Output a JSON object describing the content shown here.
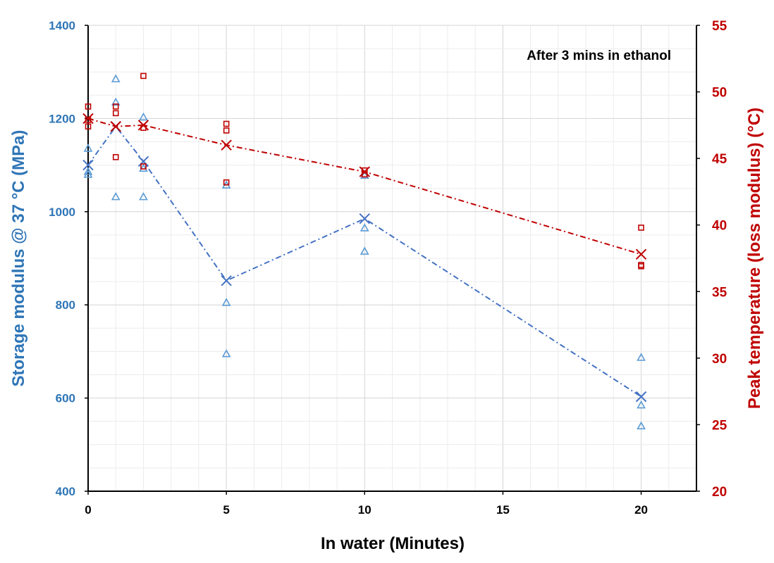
{
  "chart_data": {
    "type": "scatter",
    "annotation": "After 3 mins in ethanol",
    "xlabel": "In water (Minutes)",
    "ylabel_left": "Storage modulus @ 37 °C (MPa)",
    "ylabel_right": "Peak temperature (loss modulus) (°C)",
    "xlim": [
      0,
      22
    ],
    "ylim_left": [
      400,
      1400
    ],
    "ylim_right": [
      20,
      55
    ],
    "x_ticks": [
      0,
      5,
      10,
      15,
      20
    ],
    "y_ticks_left": [
      400,
      600,
      800,
      1000,
      1200,
      1400
    ],
    "y_ticks_right": [
      20,
      25,
      30,
      35,
      40,
      45,
      50,
      55
    ],
    "grid": true,
    "colors": {
      "storage": "#4472C4",
      "storage_axis": "#2E75B6",
      "peak": "#C00000"
    },
    "series": [
      {
        "axis": "left",
        "marker": "triangle",
        "color": "#5B9BD5",
        "points": [
          [
            0,
            1136
          ],
          [
            0,
            1086
          ],
          [
            0,
            1080
          ],
          [
            1,
            1285
          ],
          [
            1,
            1235
          ],
          [
            1,
            1032
          ],
          [
            2,
            1203
          ],
          [
            2,
            1093
          ],
          [
            2,
            1032
          ],
          [
            5,
            1057
          ],
          [
            5,
            805
          ],
          [
            5,
            695
          ],
          [
            10,
            1078
          ],
          [
            10,
            965
          ],
          [
            10,
            915
          ],
          [
            20,
            687
          ],
          [
            20,
            585
          ],
          [
            20,
            540
          ]
        ]
      },
      {
        "axis": "left",
        "marker": "x",
        "line": "dash-dot",
        "color": "#4472C4",
        "points": [
          [
            0,
            1100
          ],
          [
            1,
            1183
          ],
          [
            2,
            1108
          ],
          [
            5,
            852
          ],
          [
            10,
            985
          ],
          [
            20,
            603
          ]
        ]
      },
      {
        "axis": "right",
        "marker": "square",
        "color": "#C00000",
        "points": [
          [
            0,
            48.9
          ],
          [
            0,
            47.9
          ],
          [
            0,
            47.4
          ],
          [
            1,
            48.9
          ],
          [
            1,
            48.4
          ],
          [
            1,
            45.1
          ],
          [
            2,
            51.2
          ],
          [
            2,
            47.3
          ],
          [
            2,
            44.4
          ],
          [
            5,
            47.6
          ],
          [
            5,
            47.1
          ],
          [
            5,
            43.2
          ],
          [
            10,
            44.1
          ],
          [
            10,
            43.8
          ],
          [
            20,
            39.8
          ],
          [
            20,
            37.0
          ],
          [
            20,
            36.9
          ]
        ]
      },
      {
        "axis": "right",
        "marker": "x",
        "line": "dash-dot",
        "color": "#C00000",
        "points": [
          [
            0,
            48.0
          ],
          [
            1,
            47.4
          ],
          [
            2,
            47.5
          ],
          [
            5,
            46.0
          ],
          [
            10,
            44.0
          ],
          [
            20,
            37.8
          ]
        ]
      }
    ]
  }
}
